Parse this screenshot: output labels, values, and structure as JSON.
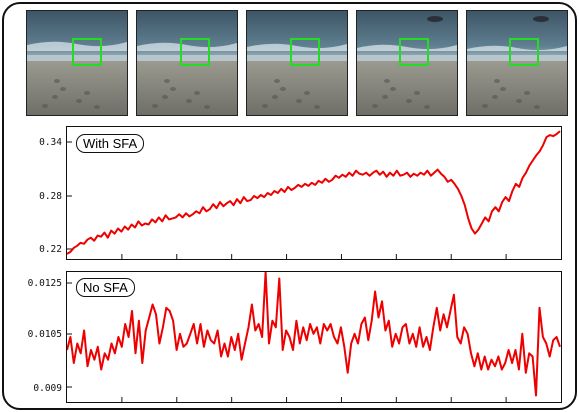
{
  "colors": {
    "line": "#ee0000",
    "box": "#22dd22",
    "frame": "#111111"
  },
  "thumbnails": [
    {
      "frame": 1,
      "boxed": true
    },
    {
      "frame": 2,
      "boxed": true
    },
    {
      "frame": 3,
      "boxed": true
    },
    {
      "frame": 4,
      "boxed": true
    },
    {
      "frame": 5,
      "boxed": true
    }
  ],
  "chart_data": [
    {
      "type": "line",
      "title": "With SFA",
      "ylim": [
        0.215,
        0.345
      ],
      "yticks": [
        "0.34",
        "0.28",
        "0.22"
      ],
      "xticks": 8,
      "series": [
        {
          "values": [
            0.22,
            0.222,
            0.226,
            0.228,
            0.231,
            0.23,
            0.234,
            0.236,
            0.233,
            0.238,
            0.237,
            0.241,
            0.236,
            0.243,
            0.24,
            0.245,
            0.242,
            0.247,
            0.244,
            0.249,
            0.246,
            0.252,
            0.248,
            0.25,
            0.249,
            0.254,
            0.251,
            0.256,
            0.252,
            0.258,
            0.254,
            0.255,
            0.256,
            0.259,
            0.256,
            0.26,
            0.257,
            0.259,
            0.262,
            0.26,
            0.266,
            0.262,
            0.264,
            0.269,
            0.265,
            0.271,
            0.267,
            0.27,
            0.272,
            0.268,
            0.274,
            0.27,
            0.276,
            0.272,
            0.273,
            0.277,
            0.275,
            0.278,
            0.276,
            0.28,
            0.278,
            0.282,
            0.28,
            0.284,
            0.281,
            0.286,
            0.283,
            0.285,
            0.288,
            0.286,
            0.289,
            0.287,
            0.29,
            0.288,
            0.292,
            0.29,
            0.294,
            0.291,
            0.293,
            0.297,
            0.295,
            0.298,
            0.296,
            0.3,
            0.297,
            0.302,
            0.299,
            0.298,
            0.3,
            0.297,
            0.3,
            0.302,
            0.298,
            0.301,
            0.296,
            0.3,
            0.297,
            0.302,
            0.297,
            0.298,
            0.3,
            0.296,
            0.299,
            0.297,
            0.3,
            0.298,
            0.302,
            0.297,
            0.3,
            0.303,
            0.299,
            0.296,
            0.291,
            0.293,
            0.289,
            0.284,
            0.277,
            0.268,
            0.255,
            0.245,
            0.24,
            0.244,
            0.25,
            0.256,
            0.252,
            0.262,
            0.266,
            0.262,
            0.271,
            0.276,
            0.272,
            0.282,
            0.289,
            0.286,
            0.295,
            0.3,
            0.307,
            0.312,
            0.317,
            0.321,
            0.327,
            0.335,
            0.337,
            0.336,
            0.338,
            0.341
          ]
        }
      ]
    },
    {
      "type": "line",
      "title": "No SFA",
      "ylim": [
        0.0086,
        0.0126
      ],
      "yticks": [
        "0.0125",
        "0.0105",
        "0.009"
      ],
      "xticks": 8,
      "series": [
        {
          "values": [
            0.0102,
            0.0106,
            0.0098,
            0.0104,
            0.0101,
            0.0108,
            0.0097,
            0.0102,
            0.0099,
            0.0103,
            0.0096,
            0.0101,
            0.0099,
            0.0104,
            0.0101,
            0.0106,
            0.0103,
            0.011,
            0.0106,
            0.0114,
            0.0101,
            0.0111,
            0.0098,
            0.0108,
            0.0112,
            0.0116,
            0.0113,
            0.0104,
            0.0109,
            0.0115,
            0.0114,
            0.0111,
            0.0102,
            0.0107,
            0.0103,
            0.0104,
            0.0107,
            0.011,
            0.0104,
            0.011,
            0.0103,
            0.0108,
            0.0105,
            0.0104,
            0.0108,
            0.01,
            0.0104,
            0.01,
            0.0106,
            0.0102,
            0.0107,
            0.0099,
            0.0104,
            0.0109,
            0.0116,
            0.0108,
            0.011,
            0.0106,
            0.0126,
            0.0104,
            0.0111,
            0.0109,
            0.0124,
            0.0102,
            0.0108,
            0.0106,
            0.0102,
            0.0111,
            0.0104,
            0.0109,
            0.0105,
            0.011,
            0.0107,
            0.0109,
            0.0104,
            0.011,
            0.0108,
            0.011,
            0.0106,
            0.0104,
            0.0109,
            0.0103,
            0.0095,
            0.0104,
            0.0107,
            0.0104,
            0.011,
            0.0112,
            0.0105,
            0.0111,
            0.012,
            0.0112,
            0.0117,
            0.0108,
            0.0111,
            0.0103,
            0.0107,
            0.0104,
            0.0109,
            0.011,
            0.0104,
            0.0107,
            0.0103,
            0.0109,
            0.0103,
            0.0106,
            0.0102,
            0.0109,
            0.0115,
            0.0108,
            0.0113,
            0.0109,
            0.0114,
            0.0119,
            0.0106,
            0.0104,
            0.0109,
            0.0107,
            0.0101,
            0.0097,
            0.0101,
            0.0096,
            0.01,
            0.0096,
            0.0099,
            0.0097,
            0.01,
            0.0096,
            0.0098,
            0.0102,
            0.0098,
            0.0102,
            0.0096,
            0.0107,
            0.0095,
            0.0101,
            0.01,
            0.0088,
            0.0115,
            0.0106,
            0.0104,
            0.01,
            0.0105,
            0.0106,
            0.0103
          ]
        }
      ]
    }
  ]
}
